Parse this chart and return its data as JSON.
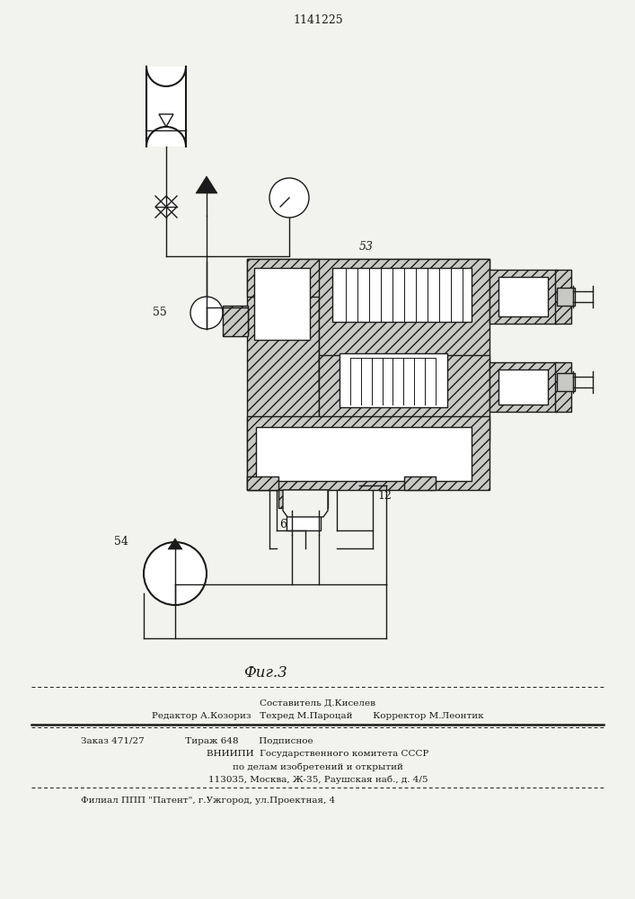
{
  "patent_number": "1141225",
  "fig_label": "Фиг.3",
  "bg_color": "#f2f2ee",
  "line_color": "#1a1a1a",
  "hatch_color": "#555555",
  "footer_lines": [
    "Составитель Д.Киселев",
    "Редактор А.Козориз   Техред М.Пароцай       Корректор М.Леонтик",
    "Заказ 471/27              Тираж 648       Подписное",
    "ВНИИПИ  Государственного комитета СССР",
    "по делам изобретений и открытий",
    "113035, Москва, Ж-35, Раушская наб., д. 4/5",
    "Филиал ППП \"Патент\", г.Ужгород, ул.Проектная, 4"
  ]
}
